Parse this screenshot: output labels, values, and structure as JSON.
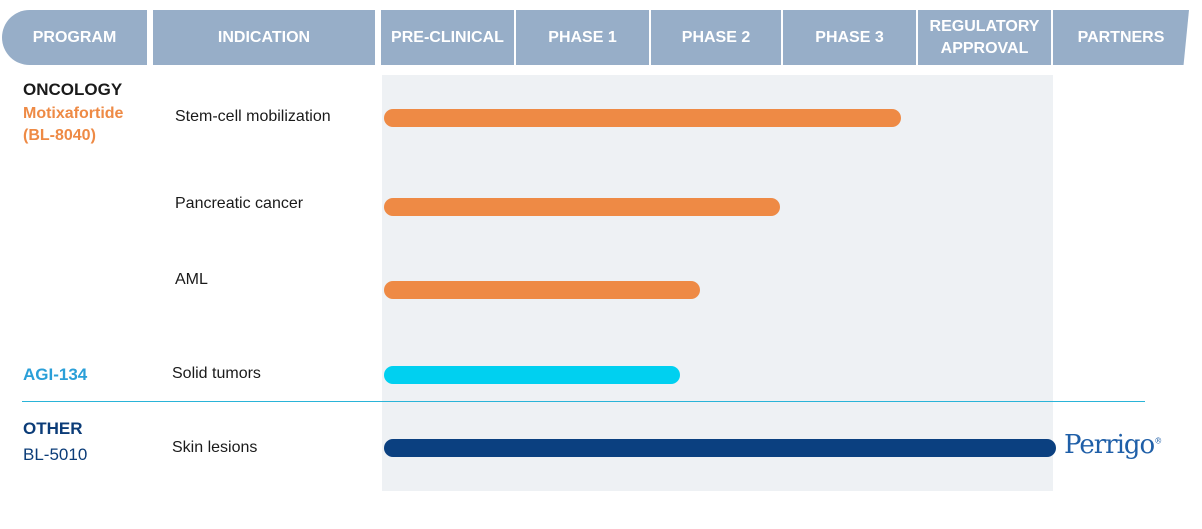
{
  "header": {
    "program": "PROGRAM",
    "indication": "INDICATION",
    "preclinical": "PRE-CLINICAL",
    "phase1": "PHASE 1",
    "phase2": "PHASE 2",
    "phase3": "PHASE 3",
    "regulatory_line1": "REGULATORY",
    "regulatory_line2": "APPROVAL",
    "partners": "PARTNERS"
  },
  "groups": {
    "oncology": "ONCOLOGY",
    "other": "OTHER"
  },
  "programs": {
    "motixafortide_line1": "Motixafortide",
    "motixafortide_line2": "(BL-8040)",
    "agi134": "AGI-134",
    "bl5010": "BL-5010"
  },
  "partner_logo": "Perrigo",
  "colors": {
    "header_bg": "#97aec8",
    "orange": "#ee8a45",
    "cyan": "#00d0f0",
    "navy": "#0b4080",
    "panel_bg": "#eef1f4"
  },
  "chart_data": {
    "type": "bar",
    "orientation": "horizontal",
    "stages": [
      "PRE-CLINICAL",
      "PHASE 1",
      "PHASE 2",
      "PHASE 3",
      "REGULATORY APPROVAL"
    ],
    "categories": [
      "Stem-cell mobilization",
      "Pancreatic cancer",
      "AML",
      "Solid tumors",
      "Skin lesions"
    ],
    "values": [
      3.85,
      2.95,
      2.35,
      2.2,
      5.0
    ],
    "xlim": [
      0,
      5
    ],
    "bar_colors": [
      "#ee8a45",
      "#ee8a45",
      "#ee8a45",
      "#00d0f0",
      "#0b4080"
    ]
  }
}
